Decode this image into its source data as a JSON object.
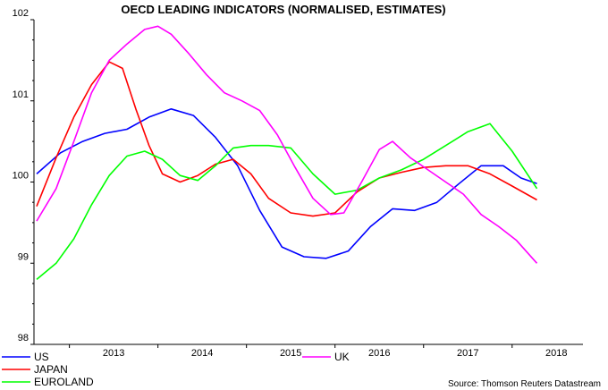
{
  "chart_data": {
    "type": "line",
    "title": "OECD LEADING INDICATORS (NORMALISED, ESTIMATES)",
    "source": "Source: Thomson Reuters Datastream",
    "ylim": [
      98,
      102
    ],
    "yticks": [
      98,
      99,
      100,
      101,
      102
    ],
    "xlim": [
      2012.6,
      2018.8
    ],
    "xticks": [
      2013,
      2014,
      2015,
      2016,
      2017,
      2018
    ],
    "grid": false,
    "series": [
      {
        "name": "US",
        "color": "#0000ff",
        "x": [
          2012.63,
          2012.9,
          2013.15,
          2013.4,
          2013.65,
          2013.9,
          2014.15,
          2014.4,
          2014.65,
          2014.9,
          2015.15,
          2015.4,
          2015.65,
          2015.9,
          2016.15,
          2016.4,
          2016.65,
          2016.9,
          2017.15,
          2017.4,
          2017.65,
          2017.9,
          2018.1,
          2018.28
        ],
        "values": [
          100.1,
          100.36,
          100.5,
          100.6,
          100.65,
          100.8,
          100.9,
          100.82,
          100.55,
          100.2,
          99.65,
          99.2,
          99.08,
          99.06,
          99.15,
          99.45,
          99.67,
          99.65,
          99.75,
          99.98,
          100.2,
          100.2,
          100.05,
          99.98
        ]
      },
      {
        "name": "JAPAN",
        "color": "#ff0000",
        "x": [
          2012.63,
          2012.85,
          2013.05,
          2013.25,
          2013.45,
          2013.6,
          2013.75,
          2013.9,
          2014.05,
          2014.25,
          2014.45,
          2014.65,
          2014.85,
          2015.05,
          2015.25,
          2015.5,
          2015.75,
          2016.0,
          2016.25,
          2016.5,
          2016.75,
          2017.0,
          2017.25,
          2017.5,
          2017.75,
          2018.0,
          2018.28
        ],
        "values": [
          99.7,
          100.3,
          100.8,
          101.2,
          101.48,
          101.4,
          100.9,
          100.45,
          100.1,
          100.0,
          100.08,
          100.22,
          100.28,
          100.1,
          99.8,
          99.62,
          99.58,
          99.62,
          99.88,
          100.05,
          100.12,
          100.18,
          100.2,
          100.2,
          100.1,
          99.95,
          99.78
        ]
      },
      {
        "name": "EUROLAND",
        "color": "#00ff00",
        "x": [
          2012.63,
          2012.85,
          2013.05,
          2013.25,
          2013.45,
          2013.65,
          2013.85,
          2014.05,
          2014.25,
          2014.45,
          2014.65,
          2014.85,
          2015.05,
          2015.25,
          2015.5,
          2015.75,
          2016.0,
          2016.25,
          2016.5,
          2016.75,
          2017.0,
          2017.25,
          2017.5,
          2017.75,
          2018.0,
          2018.28
        ],
        "values": [
          98.8,
          99.0,
          99.3,
          99.72,
          100.08,
          100.32,
          100.38,
          100.28,
          100.08,
          100.02,
          100.2,
          100.42,
          100.45,
          100.45,
          100.42,
          100.1,
          99.85,
          99.9,
          100.05,
          100.15,
          100.28,
          100.45,
          100.62,
          100.72,
          100.38,
          99.92
        ]
      },
      {
        "name": "UK",
        "color": "#ff00ff",
        "x": [
          2012.63,
          2012.85,
          2013.05,
          2013.25,
          2013.45,
          2013.65,
          2013.85,
          2014.0,
          2014.15,
          2014.35,
          2014.55,
          2014.75,
          2014.95,
          2015.15,
          2015.35,
          2015.55,
          2015.75,
          2015.95,
          2016.1,
          2016.3,
          2016.5,
          2016.65,
          2016.85,
          2017.05,
          2017.25,
          2017.45,
          2017.65,
          2017.85,
          2018.05,
          2018.28
        ],
        "values": [
          99.52,
          99.92,
          100.5,
          101.1,
          101.5,
          101.7,
          101.88,
          101.92,
          101.82,
          101.58,
          101.32,
          101.1,
          101.0,
          100.88,
          100.58,
          100.18,
          99.8,
          99.6,
          99.62,
          100.0,
          100.4,
          100.5,
          100.3,
          100.15,
          100.0,
          99.85,
          99.6,
          99.45,
          99.28,
          99.0
        ]
      }
    ],
    "legend": {
      "placement": "bottom",
      "entries": [
        {
          "name": "US",
          "color": "#0000ff"
        },
        {
          "name": "JAPAN",
          "color": "#ff0000"
        },
        {
          "name": "EUROLAND",
          "color": "#00ff00"
        },
        {
          "name": "UK",
          "color": "#ff00ff"
        }
      ]
    }
  }
}
